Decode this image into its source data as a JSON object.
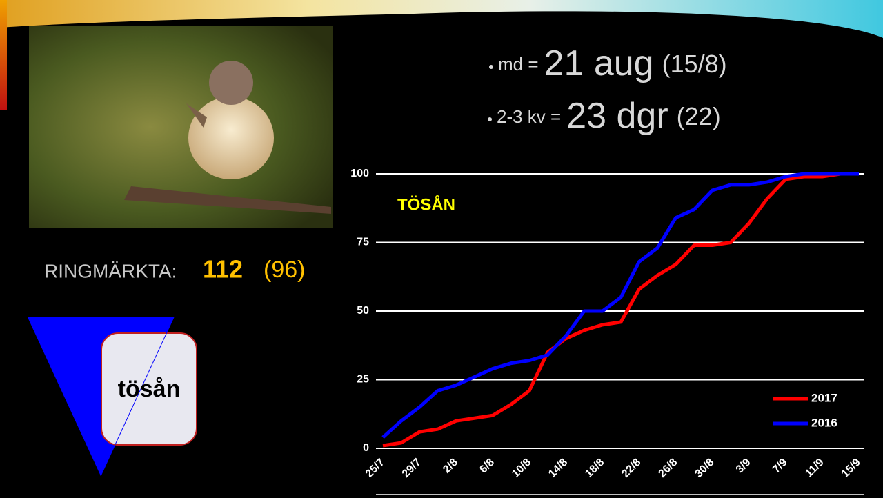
{
  "bullets": [
    {
      "label": "md =",
      "value": "21 aug",
      "previous": "(15/8)"
    },
    {
      "label": "2-3 kv =",
      "value": "23 dgr",
      "previous": "(22)"
    }
  ],
  "ringed": {
    "label": "RINGMÄRKTA:",
    "value": "112",
    "previous": "(96)"
  },
  "logo": {
    "text": "tösån"
  },
  "chart_data": {
    "type": "line",
    "annotation": "TÖSÅN",
    "categories": [
      "25/7",
      null,
      "29/7",
      null,
      "2/8",
      null,
      "6/8",
      null,
      "10/8",
      null,
      "14/8",
      null,
      "18/8",
      null,
      "22/8",
      null,
      "26/8",
      null,
      "30/8",
      null,
      "3/9",
      null,
      "7/9",
      null,
      "11/9",
      null,
      "15/9"
    ],
    "series": [
      {
        "name": "2017",
        "color": "#ff0000",
        "values": [
          1,
          2,
          6,
          7,
          10,
          11,
          12,
          16,
          21,
          35,
          40,
          43,
          45,
          46,
          58,
          63,
          67,
          74,
          74,
          75,
          82,
          91,
          98,
          99,
          99,
          100,
          100
        ]
      },
      {
        "name": "2016",
        "color": "#0000ff",
        "values": [
          4,
          10,
          15,
          21,
          23,
          26,
          29,
          31,
          32,
          34,
          41,
          50,
          50,
          55,
          68,
          73,
          84,
          87,
          94,
          96,
          96,
          97,
          99,
          100,
          100,
          100,
          100
        ]
      }
    ],
    "ylim": [
      0,
      100
    ],
    "yticks": [
      0,
      25,
      50,
      75,
      100
    ],
    "grid": true,
    "legend": "lower right"
  }
}
